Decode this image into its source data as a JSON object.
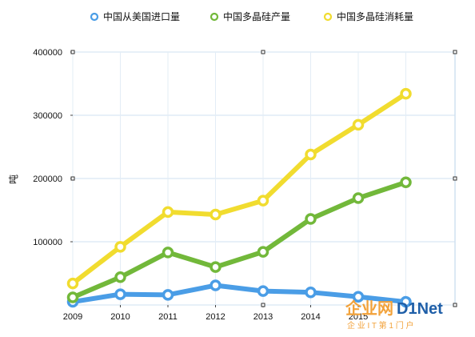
{
  "chart_data": {
    "type": "line",
    "title": "",
    "xlabel": "",
    "ylabel": "吨",
    "x": [
      "2009",
      "2010",
      "2011",
      "2012",
      "2013",
      "2014",
      "2015",
      "2016"
    ],
    "xtick_labels": [
      "2009",
      "2010",
      "2011",
      "2012",
      "2013",
      "2014",
      "2015",
      ""
    ],
    "ylim": [
      0,
      400000
    ],
    "yticks": [
      0,
      100000,
      200000,
      300000,
      400000
    ],
    "ytick_labels": [
      "",
      "100000",
      "200000",
      "300000",
      "400000"
    ],
    "grid": true,
    "legend_position": "top",
    "series": [
      {
        "name": "中国从美国进口量",
        "color": "#4a9de6",
        "values": [
          5000,
          17000,
          16000,
          31000,
          22000,
          20000,
          13000,
          5000
        ]
      },
      {
        "name": "中国多晶硅产量",
        "color": "#72b83a",
        "values": [
          12000,
          44000,
          83000,
          60000,
          84000,
          136000,
          169000,
          194000
        ]
      },
      {
        "name": "中国多晶硅消耗量",
        "color": "#f1dc2f",
        "values": [
          34000,
          92000,
          147000,
          143000,
          165000,
          238000,
          285000,
          334000
        ]
      }
    ]
  },
  "watermark": {
    "main_prefix": "企业网",
    "main_suffix": "D1Net",
    "sub": "企 业 I T 第 1 门 户"
  }
}
